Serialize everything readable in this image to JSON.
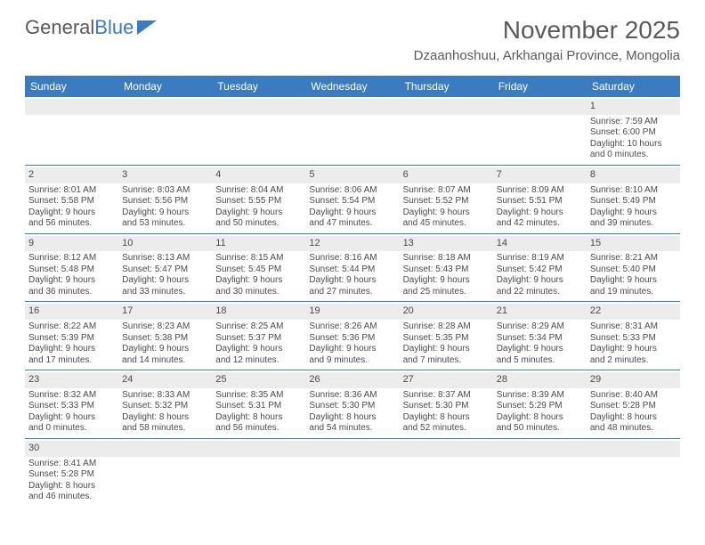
{
  "logo": {
    "part1": "General",
    "part2": "Blue"
  },
  "title": "November 2025",
  "subtitle": "Dzaanhoshuu, Arkhangai Province, Mongolia",
  "dayNames": [
    "Sunday",
    "Monday",
    "Tuesday",
    "Wednesday",
    "Thursday",
    "Friday",
    "Saturday"
  ],
  "colors": {
    "headerBg": "#3b7bbf",
    "headerText": "#ffffff",
    "daynumBg": "#ececec",
    "weekBorder": "#3b7bbf",
    "text": "#4a4a4a",
    "titleText": "#5a5a5a"
  },
  "weeks": [
    [
      {
        "day": null
      },
      {
        "day": null
      },
      {
        "day": null
      },
      {
        "day": null
      },
      {
        "day": null
      },
      {
        "day": null
      },
      {
        "day": "1",
        "sunrise": "Sunrise: 7:59 AM",
        "sunset": "Sunset: 6:00 PM",
        "daylight1": "Daylight: 10 hours",
        "daylight2": "and 0 minutes."
      }
    ],
    [
      {
        "day": "2",
        "sunrise": "Sunrise: 8:01 AM",
        "sunset": "Sunset: 5:58 PM",
        "daylight1": "Daylight: 9 hours",
        "daylight2": "and 56 minutes."
      },
      {
        "day": "3",
        "sunrise": "Sunrise: 8:03 AM",
        "sunset": "Sunset: 5:56 PM",
        "daylight1": "Daylight: 9 hours",
        "daylight2": "and 53 minutes."
      },
      {
        "day": "4",
        "sunrise": "Sunrise: 8:04 AM",
        "sunset": "Sunset: 5:55 PM",
        "daylight1": "Daylight: 9 hours",
        "daylight2": "and 50 minutes."
      },
      {
        "day": "5",
        "sunrise": "Sunrise: 8:06 AM",
        "sunset": "Sunset: 5:54 PM",
        "daylight1": "Daylight: 9 hours",
        "daylight2": "and 47 minutes."
      },
      {
        "day": "6",
        "sunrise": "Sunrise: 8:07 AM",
        "sunset": "Sunset: 5:52 PM",
        "daylight1": "Daylight: 9 hours",
        "daylight2": "and 45 minutes."
      },
      {
        "day": "7",
        "sunrise": "Sunrise: 8:09 AM",
        "sunset": "Sunset: 5:51 PM",
        "daylight1": "Daylight: 9 hours",
        "daylight2": "and 42 minutes."
      },
      {
        "day": "8",
        "sunrise": "Sunrise: 8:10 AM",
        "sunset": "Sunset: 5:49 PM",
        "daylight1": "Daylight: 9 hours",
        "daylight2": "and 39 minutes."
      }
    ],
    [
      {
        "day": "9",
        "sunrise": "Sunrise: 8:12 AM",
        "sunset": "Sunset: 5:48 PM",
        "daylight1": "Daylight: 9 hours",
        "daylight2": "and 36 minutes."
      },
      {
        "day": "10",
        "sunrise": "Sunrise: 8:13 AM",
        "sunset": "Sunset: 5:47 PM",
        "daylight1": "Daylight: 9 hours",
        "daylight2": "and 33 minutes."
      },
      {
        "day": "11",
        "sunrise": "Sunrise: 8:15 AM",
        "sunset": "Sunset: 5:45 PM",
        "daylight1": "Daylight: 9 hours",
        "daylight2": "and 30 minutes."
      },
      {
        "day": "12",
        "sunrise": "Sunrise: 8:16 AM",
        "sunset": "Sunset: 5:44 PM",
        "daylight1": "Daylight: 9 hours",
        "daylight2": "and 27 minutes."
      },
      {
        "day": "13",
        "sunrise": "Sunrise: 8:18 AM",
        "sunset": "Sunset: 5:43 PM",
        "daylight1": "Daylight: 9 hours",
        "daylight2": "and 25 minutes."
      },
      {
        "day": "14",
        "sunrise": "Sunrise: 8:19 AM",
        "sunset": "Sunset: 5:42 PM",
        "daylight1": "Daylight: 9 hours",
        "daylight2": "and 22 minutes."
      },
      {
        "day": "15",
        "sunrise": "Sunrise: 8:21 AM",
        "sunset": "Sunset: 5:40 PM",
        "daylight1": "Daylight: 9 hours",
        "daylight2": "and 19 minutes."
      }
    ],
    [
      {
        "day": "16",
        "sunrise": "Sunrise: 8:22 AM",
        "sunset": "Sunset: 5:39 PM",
        "daylight1": "Daylight: 9 hours",
        "daylight2": "and 17 minutes."
      },
      {
        "day": "17",
        "sunrise": "Sunrise: 8:23 AM",
        "sunset": "Sunset: 5:38 PM",
        "daylight1": "Daylight: 9 hours",
        "daylight2": "and 14 minutes."
      },
      {
        "day": "18",
        "sunrise": "Sunrise: 8:25 AM",
        "sunset": "Sunset: 5:37 PM",
        "daylight1": "Daylight: 9 hours",
        "daylight2": "and 12 minutes."
      },
      {
        "day": "19",
        "sunrise": "Sunrise: 8:26 AM",
        "sunset": "Sunset: 5:36 PM",
        "daylight1": "Daylight: 9 hours",
        "daylight2": "and 9 minutes."
      },
      {
        "day": "20",
        "sunrise": "Sunrise: 8:28 AM",
        "sunset": "Sunset: 5:35 PM",
        "daylight1": "Daylight: 9 hours",
        "daylight2": "and 7 minutes."
      },
      {
        "day": "21",
        "sunrise": "Sunrise: 8:29 AM",
        "sunset": "Sunset: 5:34 PM",
        "daylight1": "Daylight: 9 hours",
        "daylight2": "and 5 minutes."
      },
      {
        "day": "22",
        "sunrise": "Sunrise: 8:31 AM",
        "sunset": "Sunset: 5:33 PM",
        "daylight1": "Daylight: 9 hours",
        "daylight2": "and 2 minutes."
      }
    ],
    [
      {
        "day": "23",
        "sunrise": "Sunrise: 8:32 AM",
        "sunset": "Sunset: 5:33 PM",
        "daylight1": "Daylight: 9 hours",
        "daylight2": "and 0 minutes."
      },
      {
        "day": "24",
        "sunrise": "Sunrise: 8:33 AM",
        "sunset": "Sunset: 5:32 PM",
        "daylight1": "Daylight: 8 hours",
        "daylight2": "and 58 minutes."
      },
      {
        "day": "25",
        "sunrise": "Sunrise: 8:35 AM",
        "sunset": "Sunset: 5:31 PM",
        "daylight1": "Daylight: 8 hours",
        "daylight2": "and 56 minutes."
      },
      {
        "day": "26",
        "sunrise": "Sunrise: 8:36 AM",
        "sunset": "Sunset: 5:30 PM",
        "daylight1": "Daylight: 8 hours",
        "daylight2": "and 54 minutes."
      },
      {
        "day": "27",
        "sunrise": "Sunrise: 8:37 AM",
        "sunset": "Sunset: 5:30 PM",
        "daylight1": "Daylight: 8 hours",
        "daylight2": "and 52 minutes."
      },
      {
        "day": "28",
        "sunrise": "Sunrise: 8:39 AM",
        "sunset": "Sunset: 5:29 PM",
        "daylight1": "Daylight: 8 hours",
        "daylight2": "and 50 minutes."
      },
      {
        "day": "29",
        "sunrise": "Sunrise: 8:40 AM",
        "sunset": "Sunset: 5:28 PM",
        "daylight1": "Daylight: 8 hours",
        "daylight2": "and 48 minutes."
      }
    ],
    [
      {
        "day": "30",
        "sunrise": "Sunrise: 8:41 AM",
        "sunset": "Sunset: 5:28 PM",
        "daylight1": "Daylight: 8 hours",
        "daylight2": "and 46 minutes."
      },
      {
        "day": null
      },
      {
        "day": null
      },
      {
        "day": null
      },
      {
        "day": null
      },
      {
        "day": null
      },
      {
        "day": null
      }
    ]
  ]
}
